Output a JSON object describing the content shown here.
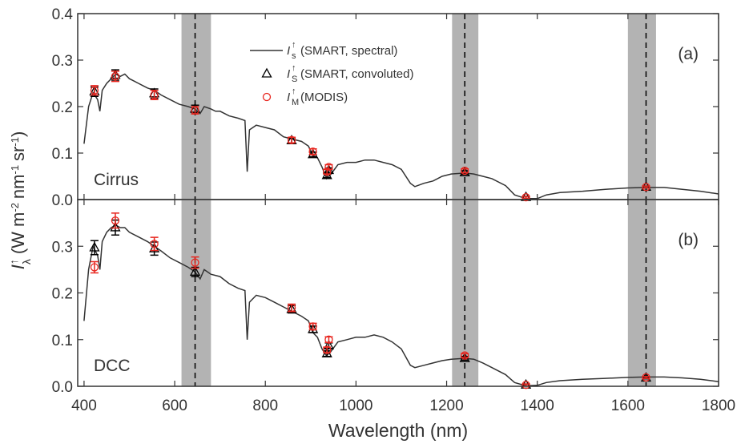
{
  "chart_data": [
    {
      "type": "line",
      "panel_label": "(a)",
      "case_label": "Cirrus",
      "xlim": [
        386,
        1800
      ],
      "xticks": [
        400,
        600,
        800,
        1000,
        1200,
        1400,
        1600,
        1800
      ],
      "show_xtick_labels": false,
      "ylim": [
        0,
        0.4
      ],
      "yticks": [
        {
          "value": 0,
          "label": "0.0"
        },
        0.1,
        0.2,
        0.3,
        0.4
      ],
      "ylabel": {
        "symbol": "I",
        "sub": "λ",
        "sup": "↑",
        "unit": [
          "(W m",
          "-2",
          "nm",
          "-1",
          "sr",
          "-1",
          ")"
        ]
      },
      "shaded_bands": [
        [
          615,
          680
        ],
        [
          1212,
          1270
        ],
        [
          1600,
          1662
        ]
      ],
      "band_color": "#b3b3b3",
      "dashed_lines": [
        645,
        1240,
        1640
      ],
      "series": [
        {
          "name": "(SMART, spectral)",
          "symbol": "I",
          "sub": "s",
          "sup": "↑",
          "kind": "line",
          "color": "#333333",
          "x": [
            400,
            410,
            420,
            430,
            435,
            440,
            450,
            460,
            470,
            480,
            490,
            500,
            510,
            520,
            530,
            540,
            555,
            570,
            590,
            610,
            630,
            645,
            656,
            665,
            680,
            690,
            700,
            720,
            740,
            755,
            760,
            765,
            780,
            800,
            820,
            840,
            860,
            880,
            895,
            905,
            915,
            925,
            935,
            945,
            960,
            980,
            1000,
            1020,
            1040,
            1060,
            1080,
            1100,
            1120,
            1130,
            1150,
            1170,
            1190,
            1210,
            1240,
            1260,
            1280,
            1300,
            1330,
            1350,
            1375,
            1400,
            1420,
            1450,
            1500,
            1550,
            1600,
            1640,
            1680,
            1720,
            1760,
            1800
          ],
          "values": [
            0.12,
            0.2,
            0.23,
            0.215,
            0.19,
            0.235,
            0.25,
            0.26,
            0.27,
            0.265,
            0.27,
            0.26,
            0.255,
            0.25,
            0.245,
            0.24,
            0.235,
            0.225,
            0.215,
            0.205,
            0.2,
            0.195,
            0.185,
            0.2,
            0.195,
            0.19,
            0.19,
            0.18,
            0.175,
            0.17,
            0.06,
            0.15,
            0.16,
            0.155,
            0.15,
            0.135,
            0.13,
            0.125,
            0.115,
            0.095,
            0.09,
            0.07,
            0.045,
            0.055,
            0.075,
            0.08,
            0.08,
            0.085,
            0.085,
            0.08,
            0.075,
            0.065,
            0.035,
            0.028,
            0.035,
            0.04,
            0.05,
            0.055,
            0.057,
            0.055,
            0.05,
            0.045,
            0.03,
            0.01,
            0.002,
            0.002,
            0.01,
            0.015,
            0.018,
            0.022,
            0.025,
            0.026,
            0.026,
            0.022,
            0.018,
            0.012
          ]
        },
        {
          "name": "(SMART, convoluted)",
          "symbol": "I",
          "sub": "S",
          "sup": "↑",
          "kind": "triangle",
          "color": "#000000",
          "x": [
            423,
            469,
            555,
            645,
            858,
            905,
            936,
            940,
            1240,
            1375,
            1640
          ],
          "values": [
            0.232,
            0.268,
            0.228,
            0.195,
            0.127,
            0.097,
            0.052,
            0.063,
            0.058,
            0.005,
            0.027
          ],
          "errors": [
            0.01,
            0.011,
            0.01,
            0.008,
            0.006,
            0.005,
            0.005,
            0.005,
            0.004,
            0.002,
            0.002
          ]
        },
        {
          "name": "(MODIS)",
          "symbol": "I",
          "sub": "M",
          "sup": "↑",
          "kind": "circle",
          "color": "#e8261f",
          "x": [
            423,
            469,
            555,
            645,
            858,
            905,
            936,
            940,
            1240,
            1375,
            1640
          ],
          "values": [
            0.235,
            0.265,
            0.225,
            0.192,
            0.128,
            0.103,
            0.06,
            0.07,
            0.062,
            0.005,
            0.027
          ],
          "errors": [
            0.01,
            0.011,
            0.01,
            0.008,
            0.006,
            0.006,
            0.005,
            0.005,
            0.004,
            0.002,
            0.002
          ]
        }
      ]
    },
    {
      "type": "line",
      "panel_label": "(b)",
      "case_label": "DCC",
      "xlim": [
        386,
        1800
      ],
      "xticks": [
        400,
        600,
        800,
        1000,
        1200,
        1400,
        1600,
        1800
      ],
      "show_xtick_labels": true,
      "xlabel": "Wavelength (nm)",
      "ylim": [
        0,
        0.4
      ],
      "yticks": [
        {
          "value": 0,
          "label": "0.0"
        },
        0.1,
        0.2,
        0.3
      ],
      "shaded_bands": [
        [
          615,
          680
        ],
        [
          1212,
          1270
        ],
        [
          1600,
          1662
        ]
      ],
      "band_color": "#b3b3b3",
      "dashed_lines": [
        645,
        1240,
        1640
      ],
      "series": [
        {
          "kind": "line",
          "color": "#333333",
          "x": [
            400,
            410,
            420,
            430,
            435,
            440,
            450,
            460,
            470,
            480,
            490,
            500,
            520,
            540,
            555,
            570,
            590,
            610,
            630,
            645,
            656,
            665,
            680,
            700,
            720,
            740,
            755,
            760,
            765,
            780,
            800,
            820,
            840,
            860,
            880,
            895,
            905,
            915,
            925,
            935,
            945,
            960,
            980,
            1000,
            1020,
            1040,
            1060,
            1080,
            1100,
            1120,
            1130,
            1150,
            1170,
            1190,
            1210,
            1240,
            1260,
            1280,
            1300,
            1330,
            1350,
            1375,
            1400,
            1420,
            1450,
            1500,
            1550,
            1600,
            1640,
            1680,
            1720,
            1760,
            1800
          ],
          "values": [
            0.14,
            0.25,
            0.3,
            0.28,
            0.25,
            0.31,
            0.33,
            0.34,
            0.345,
            0.34,
            0.34,
            0.33,
            0.32,
            0.31,
            0.3,
            0.29,
            0.275,
            0.265,
            0.255,
            0.245,
            0.23,
            0.25,
            0.24,
            0.235,
            0.22,
            0.21,
            0.205,
            0.1,
            0.18,
            0.195,
            0.19,
            0.18,
            0.17,
            0.16,
            0.15,
            0.14,
            0.115,
            0.105,
            0.08,
            0.065,
            0.075,
            0.095,
            0.1,
            0.105,
            0.105,
            0.11,
            0.105,
            0.095,
            0.08,
            0.045,
            0.04,
            0.045,
            0.05,
            0.055,
            0.058,
            0.06,
            0.058,
            0.05,
            0.04,
            0.025,
            0.008,
            0.001,
            0.002,
            0.008,
            0.012,
            0.015,
            0.017,
            0.019,
            0.02,
            0.02,
            0.018,
            0.015,
            0.01
          ]
        },
        {
          "kind": "triangle",
          "color": "#000000",
          "x": [
            423,
            469,
            555,
            645,
            858,
            905,
            936,
            940,
            1240,
            1375,
            1640
          ],
          "values": [
            0.297,
            0.34,
            0.295,
            0.245,
            0.165,
            0.122,
            0.07,
            0.087,
            0.06,
            0.003,
            0.018
          ],
          "errors": [
            0.015,
            0.016,
            0.014,
            0.01,
            0.008,
            0.007,
            0.006,
            0.006,
            0.004,
            0.002,
            0.002
          ]
        },
        {
          "kind": "circle",
          "color": "#e8261f",
          "x": [
            423,
            469,
            555,
            645,
            858,
            905,
            936,
            940,
            1240,
            1375,
            1640
          ],
          "values": [
            0.255,
            0.355,
            0.305,
            0.265,
            0.168,
            0.128,
            0.078,
            0.1,
            0.066,
            0.003,
            0.019
          ],
          "errors": [
            0.012,
            0.016,
            0.014,
            0.012,
            0.008,
            0.007,
            0.006,
            0.006,
            0.004,
            0.002,
            0.002
          ]
        }
      ]
    }
  ]
}
